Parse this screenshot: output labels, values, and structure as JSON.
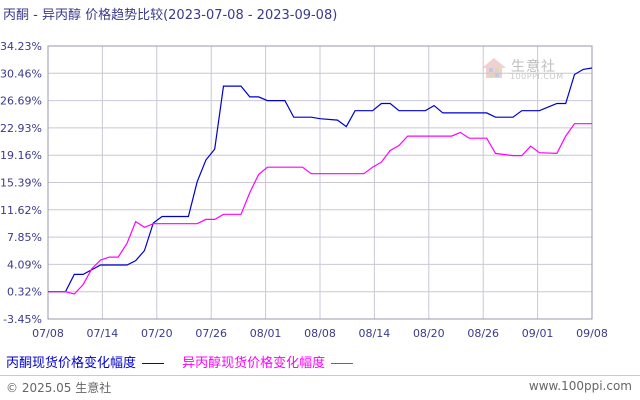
{
  "title": {
    "main": "丙酮 - 异丙醇 价格趋势比较",
    "range": "(2023-07-08 - 2023-09-08)"
  },
  "watermark": {
    "brand": "生意社",
    "site": "100PPI.COM"
  },
  "footer": {
    "copyright": "© 2025.05 生意社",
    "site": "www.100ppi.com"
  },
  "colors": {
    "series1": "#0000cc",
    "series2": "#ff00ff",
    "grid": "#c8c8d8",
    "label": "#3a3a8c"
  },
  "chart_data": {
    "type": "line",
    "x_ticks": [
      "07/08",
      "07/14",
      "07/20",
      "07/26",
      "08/01",
      "08/08",
      "08/14",
      "08/20",
      "08/26",
      "09/01",
      "09/08"
    ],
    "x_range": [
      "2023-07-08",
      "2023-09-08"
    ],
    "y_ticks": [
      "34.23%",
      "30.46%",
      "26.69%",
      "22.93%",
      "19.16%",
      "15.39%",
      "11.62%",
      "7.85%",
      "4.09%",
      "0.32%",
      "-3.45%"
    ],
    "ylim": [
      -3.45,
      34.23
    ],
    "grid": true,
    "legend_position": "bottom-left",
    "series": [
      {
        "name": "丙酮现货价格变化幅度",
        "color": "#0000cc",
        "points": [
          [
            "2023-07-08",
            0.32
          ],
          [
            "2023-07-10",
            0.32
          ],
          [
            "2023-07-11",
            2.7
          ],
          [
            "2023-07-12",
            2.7
          ],
          [
            "2023-07-14",
            4.0
          ],
          [
            "2023-07-17",
            4.0
          ],
          [
            "2023-07-18",
            4.6
          ],
          [
            "2023-07-19",
            6.0
          ],
          [
            "2023-07-20",
            9.8
          ],
          [
            "2023-07-21",
            10.7
          ],
          [
            "2023-07-24",
            10.7
          ],
          [
            "2023-07-25",
            15.5
          ],
          [
            "2023-07-26",
            18.5
          ],
          [
            "2023-07-27",
            20.0
          ],
          [
            "2023-07-28",
            28.7
          ],
          [
            "2023-07-30",
            28.7
          ],
          [
            "2023-07-31",
            27.2
          ],
          [
            "2023-08-01",
            27.2
          ],
          [
            "2023-08-02",
            26.7
          ],
          [
            "2023-08-04",
            26.7
          ],
          [
            "2023-08-05",
            24.4
          ],
          [
            "2023-08-07",
            24.4
          ],
          [
            "2023-08-08",
            24.2
          ],
          [
            "2023-08-10",
            24.0
          ],
          [
            "2023-08-11",
            23.1
          ],
          [
            "2023-08-12",
            25.3
          ],
          [
            "2023-08-14",
            25.3
          ],
          [
            "2023-08-15",
            26.3
          ],
          [
            "2023-08-16",
            26.3
          ],
          [
            "2023-08-17",
            25.3
          ],
          [
            "2023-08-20",
            25.3
          ],
          [
            "2023-08-21",
            26.0
          ],
          [
            "2023-08-22",
            25.0
          ],
          [
            "2023-08-27",
            25.0
          ],
          [
            "2023-08-28",
            24.4
          ],
          [
            "2023-08-30",
            24.4
          ],
          [
            "2023-08-31",
            25.3
          ],
          [
            "2023-09-02",
            25.3
          ],
          [
            "2023-09-03",
            25.8
          ],
          [
            "2023-09-04",
            26.3
          ],
          [
            "2023-09-05",
            26.3
          ],
          [
            "2023-09-06",
            30.3
          ],
          [
            "2023-09-07",
            31.0
          ],
          [
            "2023-09-08",
            31.2
          ]
        ]
      },
      {
        "name": "异丙醇现货价格变化幅度",
        "color": "#ff00ff",
        "points": [
          [
            "2023-07-08",
            0.32
          ],
          [
            "2023-07-10",
            0.32
          ],
          [
            "2023-07-11",
            0.0
          ],
          [
            "2023-07-12",
            1.3
          ],
          [
            "2023-07-13",
            3.5
          ],
          [
            "2023-07-14",
            4.7
          ],
          [
            "2023-07-15",
            5.1
          ],
          [
            "2023-07-16",
            5.1
          ],
          [
            "2023-07-17",
            7.0
          ],
          [
            "2023-07-18",
            10.0
          ],
          [
            "2023-07-19",
            9.2
          ],
          [
            "2023-07-20",
            9.7
          ],
          [
            "2023-07-25",
            9.7
          ],
          [
            "2023-07-26",
            10.3
          ],
          [
            "2023-07-27",
            10.3
          ],
          [
            "2023-07-28",
            11.0
          ],
          [
            "2023-07-30",
            11.0
          ],
          [
            "2023-07-31",
            14.0
          ],
          [
            "2023-08-01",
            16.5
          ],
          [
            "2023-08-02",
            17.5
          ],
          [
            "2023-08-06",
            17.5
          ],
          [
            "2023-08-07",
            16.6
          ],
          [
            "2023-08-13",
            16.6
          ],
          [
            "2023-08-14",
            17.5
          ],
          [
            "2023-08-15",
            18.2
          ],
          [
            "2023-08-16",
            19.8
          ],
          [
            "2023-08-17",
            20.5
          ],
          [
            "2023-08-18",
            21.8
          ],
          [
            "2023-08-23",
            21.8
          ],
          [
            "2023-08-24",
            22.3
          ],
          [
            "2023-08-25",
            21.5
          ],
          [
            "2023-08-27",
            21.5
          ],
          [
            "2023-08-28",
            19.4
          ],
          [
            "2023-08-30",
            19.1
          ],
          [
            "2023-08-31",
            19.1
          ],
          [
            "2023-09-01",
            20.4
          ],
          [
            "2023-09-02",
            19.5
          ],
          [
            "2023-09-04",
            19.4
          ],
          [
            "2023-09-05",
            21.8
          ],
          [
            "2023-09-06",
            23.5
          ],
          [
            "2023-09-08",
            23.5
          ]
        ]
      }
    ]
  }
}
